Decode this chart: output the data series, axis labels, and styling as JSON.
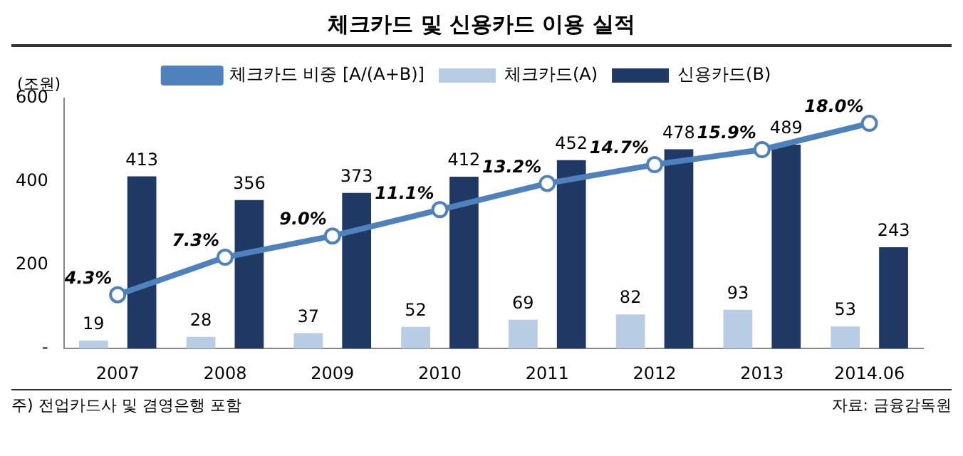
{
  "chart_data": {
    "type": "bar",
    "title": "체크카드 및 신용카드 이용 실적",
    "ylabel": "(조원)",
    "categories": [
      "2007",
      "2008",
      "2009",
      "2010",
      "2011",
      "2012",
      "2013",
      "2014.06"
    ],
    "series": [
      {
        "name": "체크카드(A)",
        "color": "#b8cce4",
        "values": [
          19,
          28,
          37,
          52,
          69,
          82,
          93,
          53
        ]
      },
      {
        "name": "신용카드(B)",
        "color": "#1f3864",
        "values": [
          413,
          356,
          373,
          412,
          452,
          478,
          489,
          243
        ]
      },
      {
        "name": "체크카드 비중 [A/(A+B)]",
        "type": "line",
        "axis": "y2",
        "color": "#4f81bd",
        "marker": "circle",
        "values": [
          4.3,
          7.3,
          9.0,
          11.1,
          13.2,
          14.7,
          15.9,
          18.0
        ],
        "value_labels": [
          "4.3%",
          "7.3%",
          "9.0%",
          "11.1%",
          "13.2%",
          "14.7%",
          "15.9%",
          "18.0%"
        ]
      }
    ],
    "ylim": [
      0,
      600
    ],
    "yticks": [
      {
        "value": 0,
        "label": "-"
      },
      200,
      400,
      600
    ],
    "y2lim": [
      0,
      20
    ],
    "data_labels": true,
    "legend": "top",
    "grid": false,
    "annotations": [
      "주) 전업카드사 및 겸영은행 포함",
      "자료: 금융감독원"
    ]
  }
}
